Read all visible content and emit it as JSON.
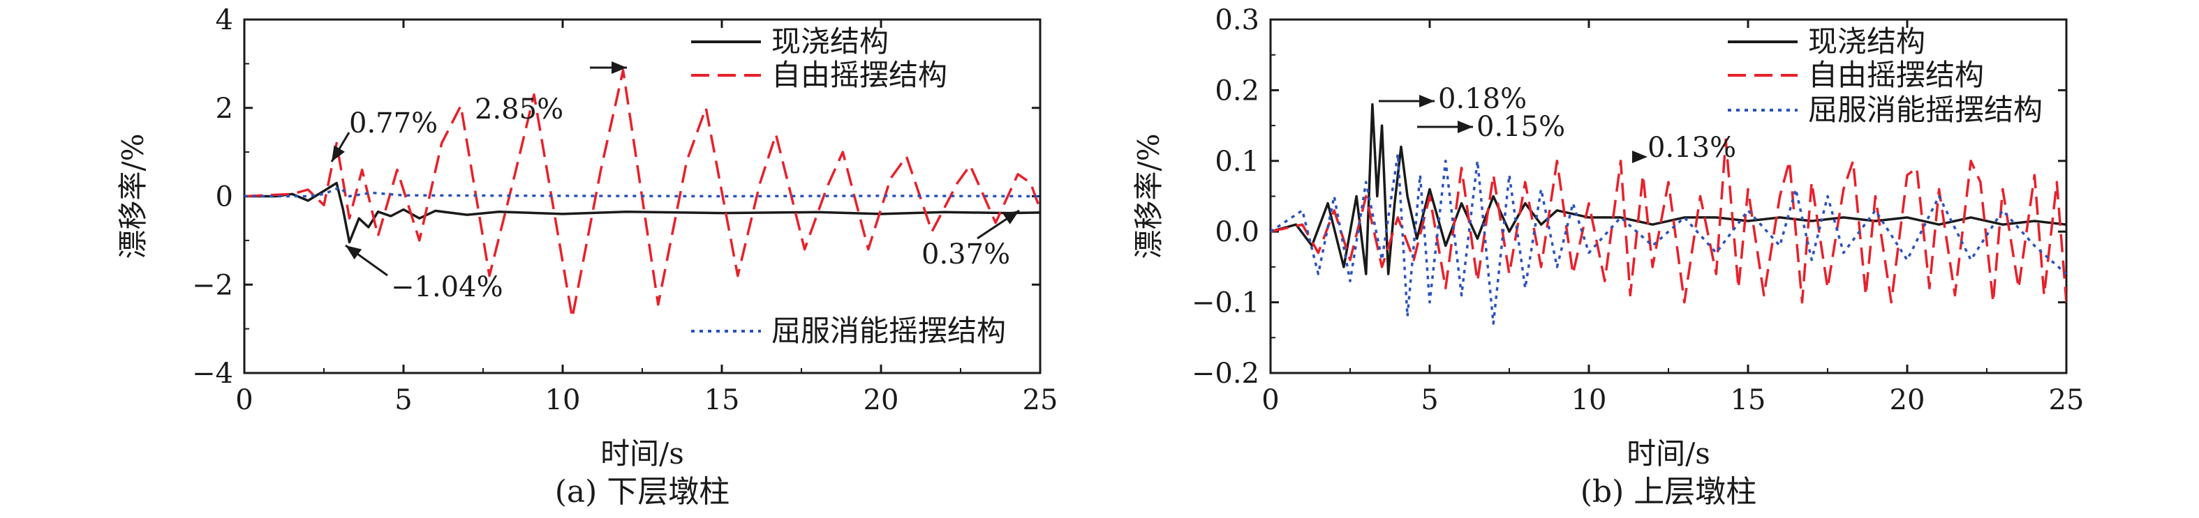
{
  "colors": {
    "cast_in_place": "#1a1a1a",
    "free_rocking": "#e8202a",
    "yield_dissipating": "#2a52be",
    "axis": "#1a1a1a"
  },
  "panels": [
    {
      "caption": "(a) 下层墩柱",
      "xlabel": "时间/s",
      "ylabel": "漂移率/%"
    },
    {
      "caption": "(b) 上层墩柱",
      "xlabel": "时间/s",
      "ylabel": "漂移率/%"
    }
  ],
  "chart_data": [
    {
      "type": "line",
      "caption": "(a) 下层墩柱",
      "xlabel": "时间/s",
      "ylabel": "漂移率/%",
      "xlim": [
        0,
        25
      ],
      "ylim": [
        -4,
        4
      ],
      "xticks": [
        "0",
        "5",
        "10",
        "15",
        "20",
        "25"
      ],
      "yticks": [
        "−4",
        "−2",
        "0",
        "2",
        "4"
      ],
      "grid": false,
      "legend": "top-right, bottom-right",
      "series": [
        {
          "name": "现浇结构",
          "style": "solid",
          "x": [
            0,
            1,
            1.5,
            2,
            2.5,
            2.9,
            3.1,
            3.3,
            3.6,
            3.9,
            4.2,
            4.6,
            5,
            5.5,
            6,
            7,
            8,
            10,
            12,
            15,
            18,
            20,
            22,
            24,
            25
          ],
          "y": [
            0,
            0,
            0.05,
            -0.1,
            0.12,
            0.3,
            -0.3,
            -1.04,
            -0.5,
            -0.7,
            -0.35,
            -0.45,
            -0.3,
            -0.5,
            -0.33,
            -0.42,
            -0.35,
            -0.4,
            -0.35,
            -0.38,
            -0.36,
            -0.4,
            -0.36,
            -0.38,
            -0.37
          ]
        },
        {
          "name": "自由摇摆结构",
          "style": "dashed",
          "x": [
            0,
            1.5,
            2,
            2.5,
            2.9,
            3.3,
            3.7,
            4.2,
            4.8,
            5.5,
            6.2,
            6.8,
            7.7,
            8.5,
            9.1,
            10.3,
            11.2,
            11.9,
            13,
            13.9,
            14.5,
            15.5,
            16.2,
            16.7,
            17.6,
            18.3,
            18.8,
            19.6,
            20.3,
            20.8,
            21.6,
            22.4,
            22.8,
            23.6,
            24.3,
            24.7,
            25
          ],
          "y": [
            0,
            0.05,
            0.15,
            -0.2,
            1.2,
            -0.5,
            0.6,
            -0.9,
            0.6,
            -1.0,
            1.2,
            2.05,
            -1.8,
            0.5,
            2.3,
            -2.75,
            0.6,
            2.85,
            -2.45,
            0.8,
            2.0,
            -1.8,
            0.3,
            1.4,
            -1.2,
            0.2,
            1.0,
            -1.2,
            0.4,
            0.9,
            -0.8,
            0.3,
            0.7,
            -0.6,
            0.5,
            0.3,
            -0.3
          ]
        },
        {
          "name": "屈服消能摇摆结构",
          "style": "dotted",
          "x": [
            0,
            2,
            2.5,
            3,
            3.3,
            4,
            5,
            10,
            15,
            20,
            25
          ],
          "y": [
            0,
            0,
            0.05,
            0.2,
            0.0,
            0.08,
            0.02,
            0.01,
            0.0,
            0.01,
            0.0
          ]
        }
      ],
      "annotations": [
        "0.77%",
        "2.85%",
        "−1.04%",
        "0.37%"
      ]
    },
    {
      "type": "line",
      "caption": "(b) 上层墩柱",
      "xlabel": "时间/s",
      "ylabel": "漂移率/%",
      "xlim": [
        0,
        25
      ],
      "ylim": [
        -0.2,
        0.3
      ],
      "xticks": [
        "0",
        "5",
        "10",
        "15",
        "20",
        "25"
      ],
      "yticks": [
        "−0.2",
        "−0.1",
        "0.0",
        "0.1",
        "0.2",
        "0.3"
      ],
      "grid": false,
      "legend": "top-right",
      "series": [
        {
          "name": "现浇结构",
          "style": "solid",
          "x": [
            0,
            0.8,
            1.3,
            1.8,
            2.3,
            2.7,
            3.0,
            3.2,
            3.35,
            3.5,
            3.7,
            3.9,
            4.1,
            4.3,
            4.6,
            5,
            5.5,
            6,
            6.5,
            7,
            7.5,
            8,
            8.5,
            9,
            10,
            11,
            12,
            13,
            14,
            15,
            16,
            17,
            18,
            19,
            20,
            21,
            22,
            23,
            24,
            25
          ],
          "y": [
            0,
            0.01,
            -0.02,
            0.04,
            -0.05,
            0.05,
            -0.06,
            0.18,
            0.05,
            0.15,
            -0.06,
            0.04,
            0.12,
            0.05,
            -0.01,
            0.06,
            -0.02,
            0.04,
            -0.01,
            0.05,
            0.0,
            0.04,
            0.01,
            0.03,
            0.02,
            0.02,
            0.01,
            0.02,
            0.02,
            0.015,
            0.02,
            0.015,
            0.02,
            0.015,
            0.02,
            0.01,
            0.02,
            0.01,
            0.015,
            0.01
          ]
        },
        {
          "name": "自由摇摆结构",
          "style": "dashed",
          "x": [
            0,
            1,
            1.5,
            2,
            2.5,
            3,
            3.5,
            4,
            4.5,
            5,
            5.5,
            6,
            6.5,
            7,
            7.5,
            8,
            8.5,
            9,
            9.5,
            10,
            10.5,
            11,
            11.3,
            11.7,
            12,
            12.5,
            13,
            13.5,
            14,
            14.3,
            14.7,
            15,
            15.5,
            16,
            16.3,
            16.7,
            17,
            17.5,
            18,
            18.3,
            18.7,
            19,
            19.5,
            20,
            20.3,
            20.7,
            21,
            21.5,
            22,
            22.3,
            22.7,
            23,
            23.5,
            24,
            24.3,
            24.7,
            25
          ],
          "y": [
            0,
            0.01,
            -0.03,
            0.03,
            -0.04,
            0.05,
            -0.05,
            0.02,
            -0.04,
            0.05,
            -0.08,
            0.09,
            -0.07,
            0.08,
            -0.06,
            0.07,
            -0.05,
            0.1,
            -0.06,
            0.04,
            -0.07,
            0.1,
            -0.09,
            0.08,
            -0.05,
            0.07,
            -0.1,
            0.05,
            -0.06,
            0.13,
            -0.08,
            0.06,
            -0.09,
            0.05,
            0.1,
            -0.1,
            0.07,
            -0.08,
            0.06,
            0.1,
            -0.09,
            0.05,
            -0.1,
            0.08,
            0.09,
            -0.08,
            0.06,
            -0.09,
            0.1,
            0.07,
            -0.1,
            0.06,
            -0.08,
            0.08,
            -0.09,
            0.07,
            -0.1
          ]
        },
        {
          "name": "屈服消能摇摆结构",
          "style": "dotted",
          "x": [
            0,
            1,
            1.5,
            2,
            2.5,
            3,
            3.5,
            4,
            4.3,
            4.7,
            5,
            5.5,
            6,
            6.5,
            7,
            7.5,
            8,
            8.5,
            9,
            9.5,
            10,
            11,
            12,
            13,
            14,
            15,
            16,
            16.5,
            17,
            17.5,
            18,
            19,
            20,
            21,
            22,
            23,
            24,
            25
          ],
          "y": [
            0,
            0.03,
            -0.06,
            0.05,
            -0.07,
            0.07,
            -0.04,
            0.11,
            -0.12,
            0.08,
            -0.1,
            0.1,
            -0.09,
            0.1,
            -0.13,
            0.08,
            -0.08,
            0.06,
            -0.05,
            0.04,
            -0.03,
            0.02,
            -0.02,
            0.02,
            -0.03,
            0.03,
            -0.02,
            0.06,
            -0.04,
            0.05,
            -0.03,
            0.03,
            -0.04,
            0.05,
            -0.04,
            0.03,
            -0.02,
            -0.06
          ]
        }
      ],
      "annotations": [
        "0.18%",
        "0.15%",
        "0.13%"
      ]
    }
  ]
}
